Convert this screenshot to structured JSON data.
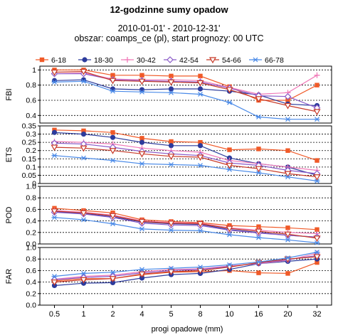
{
  "title": "12-godzinne sumy opadow",
  "subtitle_line1": "2010-01-01' - 2010-12-31'",
  "subtitle_line2": "obszar: coamps_ce (pl), start prognozy: 00 UTC",
  "chart_data": {
    "type": "line",
    "xlabel": "progi opadowe (mm)",
    "categories": [
      "0.5",
      "1",
      "2",
      "4",
      "5",
      "8",
      "10",
      "16",
      "20",
      "32"
    ],
    "legend_position": "top",
    "series_styles": [
      {
        "name": "6-18",
        "color": "#f05a28",
        "marker": "square"
      },
      {
        "name": "18-30",
        "color": "#2c3b9c",
        "marker": "circle"
      },
      {
        "name": "30-42",
        "color": "#f07ab8",
        "marker": "plus"
      },
      {
        "name": "42-54",
        "color": "#8a5ac8",
        "marker": "diamond"
      },
      {
        "name": "54-66",
        "color": "#c83a28",
        "marker": "triangle-down"
      },
      {
        "name": "66-78",
        "color": "#4a8ae8",
        "marker": "asterisk"
      }
    ],
    "panels": [
      {
        "ylabel": "FBI",
        "ylim": [
          0.3,
          1.05
        ],
        "yticks": [
          "0.4",
          "0.6",
          "0.8",
          "1"
        ],
        "ytick_values": [
          0.4,
          0.6,
          0.8,
          1.0
        ],
        "grid": true,
        "series": [
          {
            "name": "6-18",
            "values": [
              1.0,
              1.0,
              0.93,
              0.93,
              0.92,
              0.92,
              0.78,
              0.6,
              0.6,
              0.8
            ]
          },
          {
            "name": "18-30",
            "values": [
              0.86,
              0.87,
              0.75,
              0.74,
              0.75,
              0.75,
              0.72,
              0.67,
              0.55,
              0.53
            ]
          },
          {
            "name": "30-42",
            "values": [
              0.95,
              0.96,
              0.88,
              0.87,
              0.87,
              0.86,
              0.77,
              0.68,
              0.7,
              0.93
            ]
          },
          {
            "name": "42-54",
            "values": [
              0.95,
              0.95,
              0.87,
              0.86,
              0.85,
              0.84,
              0.76,
              0.66,
              0.65,
              0.5
            ]
          },
          {
            "name": "54-66",
            "values": [
              0.97,
              0.98,
              0.86,
              0.85,
              0.84,
              0.83,
              0.74,
              0.62,
              0.53,
              0.45
            ]
          },
          {
            "name": "66-78",
            "values": [
              0.84,
              0.85,
              0.72,
              0.71,
              0.7,
              0.68,
              0.57,
              0.38,
              0.35,
              0.35
            ]
          }
        ]
      },
      {
        "ylabel": "ETS",
        "ylim": [
          0.0,
          0.35
        ],
        "yticks": [
          "0",
          "0.05",
          "0.1",
          "0.15",
          "0.2",
          "0.25",
          "0.3",
          "0.35"
        ],
        "ytick_values": [
          0,
          0.05,
          0.1,
          0.15,
          0.2,
          0.25,
          0.3,
          0.35
        ],
        "grid": true,
        "series": [
          {
            "name": "6-18",
            "values": [
              0.325,
              0.32,
              0.31,
              0.275,
              0.255,
              0.25,
              0.205,
              0.21,
              0.2,
              0.14
            ]
          },
          {
            "name": "18-30",
            "values": [
              0.31,
              0.3,
              0.28,
              0.25,
              0.23,
              0.23,
              0.155,
              0.12,
              0.1,
              0.05
            ]
          },
          {
            "name": "30-42",
            "values": [
              0.255,
              0.25,
              0.24,
              0.215,
              0.2,
              0.19,
              0.14,
              0.12,
              0.1,
              0.08
            ]
          },
          {
            "name": "42-54",
            "values": [
              0.245,
              0.24,
              0.22,
              0.195,
              0.18,
              0.17,
              0.125,
              0.11,
              0.08,
              0.06
            ]
          },
          {
            "name": "54-66",
            "values": [
              0.22,
              0.215,
              0.2,
              0.18,
              0.165,
              0.16,
              0.11,
              0.09,
              0.06,
              0.04
            ]
          },
          {
            "name": "66-78",
            "values": [
              0.17,
              0.155,
              0.14,
              0.12,
              0.115,
              0.11,
              0.085,
              0.065,
              0.04,
              0.015
            ]
          }
        ]
      },
      {
        "ylabel": "POD",
        "ylim": [
          0.0,
          1.0
        ],
        "yticks": [
          "0.0",
          "0.2",
          "0.4",
          "0.6",
          "0.8",
          "1.0"
        ],
        "ytick_values": [
          0,
          0.2,
          0.4,
          0.6,
          0.8,
          1.0
        ],
        "grid": true,
        "series": [
          {
            "name": "6-18",
            "values": [
              0.62,
              0.58,
              0.54,
              0.42,
              0.39,
              0.37,
              0.32,
              0.3,
              0.28,
              0.25
            ]
          },
          {
            "name": "18-30",
            "values": [
              0.56,
              0.53,
              0.47,
              0.38,
              0.35,
              0.34,
              0.25,
              0.2,
              0.15,
              0.12
            ]
          },
          {
            "name": "30-42",
            "values": [
              0.58,
              0.55,
              0.5,
              0.4,
              0.37,
              0.36,
              0.28,
              0.24,
              0.2,
              0.18
            ]
          },
          {
            "name": "42-54",
            "values": [
              0.55,
              0.52,
              0.46,
              0.36,
              0.33,
              0.32,
              0.24,
              0.19,
              0.15,
              0.12
            ]
          },
          {
            "name": "54-66",
            "values": [
              0.57,
              0.54,
              0.49,
              0.39,
              0.36,
              0.35,
              0.27,
              0.22,
              0.17,
              0.1
            ]
          },
          {
            "name": "66-78",
            "values": [
              0.46,
              0.42,
              0.35,
              0.26,
              0.24,
              0.23,
              0.16,
              0.11,
              0.07,
              0.02
            ]
          }
        ]
      },
      {
        "ylabel": "FAR",
        "ylim": [
          0.0,
          1.0
        ],
        "yticks": [
          "0.0",
          "0.2",
          "0.4",
          "0.6",
          "0.8",
          "1.0"
        ],
        "ytick_values": [
          0,
          0.2,
          0.4,
          0.6,
          0.8,
          1.0
        ],
        "grid": true,
        "series": [
          {
            "name": "6-18",
            "values": [
              0.42,
              0.46,
              0.46,
              0.53,
              0.57,
              0.58,
              0.6,
              0.56,
              0.55,
              0.74
            ]
          },
          {
            "name": "18-30",
            "values": [
              0.34,
              0.38,
              0.39,
              0.47,
              0.53,
              0.55,
              0.62,
              0.72,
              0.76,
              0.8
            ]
          },
          {
            "name": "30-42",
            "values": [
              0.45,
              0.5,
              0.52,
              0.58,
              0.62,
              0.63,
              0.68,
              0.72,
              0.78,
              0.9
            ]
          },
          {
            "name": "42-54",
            "values": [
              0.44,
              0.48,
              0.5,
              0.56,
              0.6,
              0.62,
              0.67,
              0.73,
              0.79,
              0.86
            ]
          },
          {
            "name": "54-66",
            "values": [
              0.4,
              0.44,
              0.46,
              0.54,
              0.58,
              0.6,
              0.66,
              0.74,
              0.8,
              0.84
            ]
          },
          {
            "name": "66-78",
            "values": [
              0.5,
              0.55,
              0.57,
              0.62,
              0.64,
              0.66,
              0.7,
              0.75,
              0.82,
              0.92
            ]
          }
        ]
      }
    ]
  }
}
